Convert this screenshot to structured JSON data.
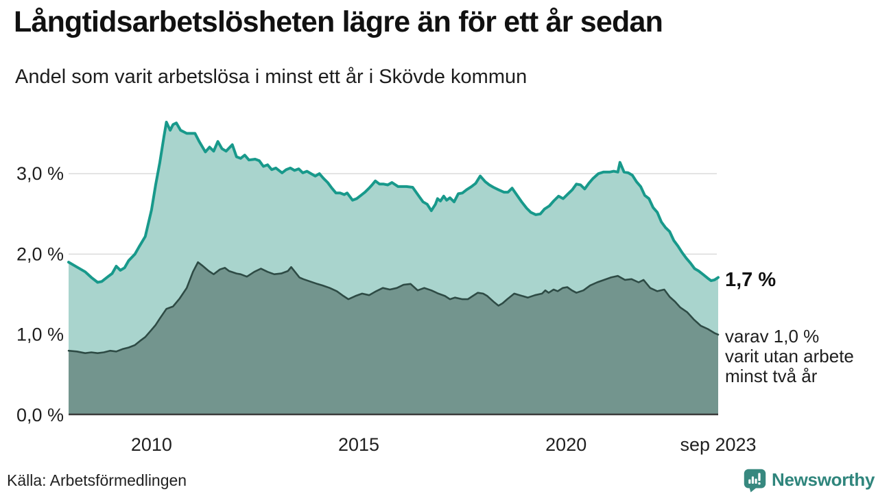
{
  "styles": {
    "accent_teal": "#18998B",
    "light_fill": "#A9D4CD",
    "dark_fill": "#73958E",
    "dark_line": "#2E4B45",
    "grid_color": "#DBDBDB",
    "axis_color": "#3A3A3A",
    "brand_color": "#2F857C"
  },
  "chart_data": {
    "type": "area",
    "title": "Långtidsarbetslösheten lägre än för ett år sedan",
    "subtitle": "Andel som varit arbetslösa i minst ett år i Skövde kommun",
    "source": "Källa: Arbetsförmedlingen",
    "brand": "Newsworthy",
    "x_domain": [
      2008,
      2023.67
    ],
    "y_domain": [
      0,
      3.8
    ],
    "grid": "horizontal",
    "legend_position": "none",
    "x_ticks": [
      {
        "year": 2010,
        "label": "2010"
      },
      {
        "year": 2015,
        "label": "2015"
      },
      {
        "year": 2020,
        "label": "2020"
      },
      {
        "year": 2023.67,
        "label": "sep 2023"
      }
    ],
    "y_ticks": [
      {
        "value": 0,
        "label": "0,0 %"
      },
      {
        "value": 1,
        "label": "1,0 %"
      },
      {
        "value": 2,
        "label": "2,0 %"
      },
      {
        "value": 3,
        "label": "3,0 %"
      }
    ],
    "annotations": {
      "end_value_label": "1,7 %",
      "end_secondary_label": "varav 1,0 %\nvarit utan arbete\nminst två år"
    },
    "series": [
      {
        "name": "Andel arbetslösa minst ett år",
        "line_color": "#18998B",
        "fill_color": "#A9D4CD",
        "line_width": 4,
        "end_value": 1.7,
        "points": [
          [
            2008.0,
            1.9
          ],
          [
            2008.2,
            1.84
          ],
          [
            2008.4,
            1.78
          ],
          [
            2008.55,
            1.71
          ],
          [
            2008.7,
            1.65
          ],
          [
            2008.8,
            1.66
          ],
          [
            2008.95,
            1.72
          ],
          [
            2009.05,
            1.76
          ],
          [
            2009.15,
            1.85
          ],
          [
            2009.25,
            1.8
          ],
          [
            2009.35,
            1.83
          ],
          [
            2009.45,
            1.92
          ],
          [
            2009.6,
            2.0
          ],
          [
            2009.7,
            2.09
          ],
          [
            2009.85,
            2.22
          ],
          [
            2010.0,
            2.55
          ],
          [
            2010.1,
            2.86
          ],
          [
            2010.2,
            3.14
          ],
          [
            2010.3,
            3.46
          ],
          [
            2010.36,
            3.64
          ],
          [
            2010.45,
            3.54
          ],
          [
            2010.52,
            3.61
          ],
          [
            2010.6,
            3.63
          ],
          [
            2010.7,
            3.54
          ],
          [
            2010.85,
            3.5
          ],
          [
            2011.05,
            3.5
          ],
          [
            2011.15,
            3.4
          ],
          [
            2011.3,
            3.27
          ],
          [
            2011.4,
            3.33
          ],
          [
            2011.5,
            3.28
          ],
          [
            2011.6,
            3.4
          ],
          [
            2011.7,
            3.31
          ],
          [
            2011.8,
            3.28
          ],
          [
            2011.95,
            3.36
          ],
          [
            2012.05,
            3.21
          ],
          [
            2012.15,
            3.19
          ],
          [
            2012.25,
            3.23
          ],
          [
            2012.35,
            3.17
          ],
          [
            2012.5,
            3.18
          ],
          [
            2012.6,
            3.16
          ],
          [
            2012.7,
            3.09
          ],
          [
            2012.8,
            3.11
          ],
          [
            2012.9,
            3.05
          ],
          [
            2013.0,
            3.07
          ],
          [
            2013.15,
            3.01
          ],
          [
            2013.25,
            3.05
          ],
          [
            2013.35,
            3.07
          ],
          [
            2013.45,
            3.04
          ],
          [
            2013.55,
            3.06
          ],
          [
            2013.65,
            3.01
          ],
          [
            2013.75,
            3.03
          ],
          [
            2013.85,
            3.0
          ],
          [
            2013.95,
            2.97
          ],
          [
            2014.05,
            3.0
          ],
          [
            2014.15,
            2.94
          ],
          [
            2014.25,
            2.89
          ],
          [
            2014.35,
            2.82
          ],
          [
            2014.45,
            2.76
          ],
          [
            2014.55,
            2.76
          ],
          [
            2014.65,
            2.74
          ],
          [
            2014.72,
            2.76
          ],
          [
            2014.85,
            2.67
          ],
          [
            2014.95,
            2.69
          ],
          [
            2015.05,
            2.73
          ],
          [
            2015.15,
            2.77
          ],
          [
            2015.25,
            2.82
          ],
          [
            2015.32,
            2.86
          ],
          [
            2015.4,
            2.91
          ],
          [
            2015.5,
            2.87
          ],
          [
            2015.6,
            2.87
          ],
          [
            2015.7,
            2.86
          ],
          [
            2015.8,
            2.89
          ],
          [
            2015.95,
            2.84
          ],
          [
            2016.15,
            2.84
          ],
          [
            2016.3,
            2.83
          ],
          [
            2016.45,
            2.72
          ],
          [
            2016.55,
            2.65
          ],
          [
            2016.65,
            2.62
          ],
          [
            2016.75,
            2.54
          ],
          [
            2016.85,
            2.62
          ],
          [
            2016.9,
            2.69
          ],
          [
            2016.97,
            2.66
          ],
          [
            2017.05,
            2.72
          ],
          [
            2017.12,
            2.67
          ],
          [
            2017.2,
            2.7
          ],
          [
            2017.3,
            2.65
          ],
          [
            2017.4,
            2.75
          ],
          [
            2017.5,
            2.76
          ],
          [
            2017.6,
            2.8
          ],
          [
            2017.72,
            2.84
          ],
          [
            2017.82,
            2.88
          ],
          [
            2017.93,
            2.97
          ],
          [
            2018.05,
            2.9
          ],
          [
            2018.15,
            2.86
          ],
          [
            2018.25,
            2.83
          ],
          [
            2018.37,
            2.8
          ],
          [
            2018.5,
            2.77
          ],
          [
            2018.6,
            2.77
          ],
          [
            2018.7,
            2.82
          ],
          [
            2018.82,
            2.73
          ],
          [
            2018.93,
            2.65
          ],
          [
            2019.05,
            2.57
          ],
          [
            2019.15,
            2.52
          ],
          [
            2019.27,
            2.49
          ],
          [
            2019.38,
            2.5
          ],
          [
            2019.48,
            2.56
          ],
          [
            2019.6,
            2.6
          ],
          [
            2019.7,
            2.66
          ],
          [
            2019.82,
            2.72
          ],
          [
            2019.93,
            2.69
          ],
          [
            2020.05,
            2.75
          ],
          [
            2020.15,
            2.8
          ],
          [
            2020.25,
            2.87
          ],
          [
            2020.35,
            2.86
          ],
          [
            2020.45,
            2.81
          ],
          [
            2020.55,
            2.88
          ],
          [
            2020.65,
            2.94
          ],
          [
            2020.78,
            3.0
          ],
          [
            2020.9,
            3.02
          ],
          [
            2021.05,
            3.02
          ],
          [
            2021.15,
            3.03
          ],
          [
            2021.25,
            3.02
          ],
          [
            2021.3,
            3.14
          ],
          [
            2021.4,
            3.02
          ],
          [
            2021.5,
            3.01
          ],
          [
            2021.6,
            2.98
          ],
          [
            2021.7,
            2.9
          ],
          [
            2021.8,
            2.84
          ],
          [
            2021.9,
            2.73
          ],
          [
            2022.0,
            2.69
          ],
          [
            2022.1,
            2.58
          ],
          [
            2022.2,
            2.52
          ],
          [
            2022.3,
            2.4
          ],
          [
            2022.4,
            2.33
          ],
          [
            2022.5,
            2.28
          ],
          [
            2022.6,
            2.17
          ],
          [
            2022.7,
            2.1
          ],
          [
            2022.8,
            2.02
          ],
          [
            2022.9,
            1.95
          ],
          [
            2023.0,
            1.89
          ],
          [
            2023.1,
            1.82
          ],
          [
            2023.2,
            1.79
          ],
          [
            2023.3,
            1.75
          ],
          [
            2023.42,
            1.7
          ],
          [
            2023.5,
            1.67
          ],
          [
            2023.58,
            1.68
          ],
          [
            2023.67,
            1.71
          ]
        ]
      },
      {
        "name": "Varav utan arbete minst två år",
        "line_color": "#2E4B45",
        "fill_color": "#73958E",
        "line_width": 2.6,
        "end_value": 1.0,
        "points": [
          [
            2008.0,
            0.8
          ],
          [
            2008.2,
            0.79
          ],
          [
            2008.4,
            0.77
          ],
          [
            2008.55,
            0.78
          ],
          [
            2008.7,
            0.77
          ],
          [
            2008.85,
            0.78
          ],
          [
            2009.0,
            0.8
          ],
          [
            2009.15,
            0.79
          ],
          [
            2009.3,
            0.82
          ],
          [
            2009.45,
            0.84
          ],
          [
            2009.6,
            0.87
          ],
          [
            2009.72,
            0.92
          ],
          [
            2009.85,
            0.97
          ],
          [
            2010.0,
            1.06
          ],
          [
            2010.1,
            1.12
          ],
          [
            2010.2,
            1.2
          ],
          [
            2010.36,
            1.32
          ],
          [
            2010.52,
            1.35
          ],
          [
            2010.68,
            1.45
          ],
          [
            2010.85,
            1.58
          ],
          [
            2011.0,
            1.78
          ],
          [
            2011.12,
            1.9
          ],
          [
            2011.22,
            1.86
          ],
          [
            2011.38,
            1.79
          ],
          [
            2011.5,
            1.75
          ],
          [
            2011.65,
            1.81
          ],
          [
            2011.77,
            1.83
          ],
          [
            2011.87,
            1.79
          ],
          [
            2012.05,
            1.76
          ],
          [
            2012.15,
            1.75
          ],
          [
            2012.3,
            1.72
          ],
          [
            2012.48,
            1.78
          ],
          [
            2012.64,
            1.82
          ],
          [
            2012.8,
            1.78
          ],
          [
            2012.96,
            1.75
          ],
          [
            2013.13,
            1.76
          ],
          [
            2013.29,
            1.79
          ],
          [
            2013.37,
            1.84
          ],
          [
            2013.57,
            1.71
          ],
          [
            2013.66,
            1.69
          ],
          [
            2013.83,
            1.66
          ],
          [
            2014.0,
            1.63
          ],
          [
            2014.13,
            1.61
          ],
          [
            2014.3,
            1.58
          ],
          [
            2014.47,
            1.54
          ],
          [
            2014.63,
            1.48
          ],
          [
            2014.75,
            1.44
          ],
          [
            2014.92,
            1.48
          ],
          [
            2015.08,
            1.51
          ],
          [
            2015.25,
            1.49
          ],
          [
            2015.42,
            1.54
          ],
          [
            2015.58,
            1.58
          ],
          [
            2015.75,
            1.56
          ],
          [
            2015.92,
            1.58
          ],
          [
            2016.08,
            1.62
          ],
          [
            2016.25,
            1.63
          ],
          [
            2016.42,
            1.55
          ],
          [
            2016.58,
            1.58
          ],
          [
            2016.75,
            1.55
          ],
          [
            2016.92,
            1.51
          ],
          [
            2017.08,
            1.48
          ],
          [
            2017.2,
            1.44
          ],
          [
            2017.32,
            1.46
          ],
          [
            2017.5,
            1.44
          ],
          [
            2017.63,
            1.44
          ],
          [
            2017.75,
            1.48
          ],
          [
            2017.87,
            1.52
          ],
          [
            2018.0,
            1.51
          ],
          [
            2018.1,
            1.48
          ],
          [
            2018.25,
            1.41
          ],
          [
            2018.37,
            1.36
          ],
          [
            2018.47,
            1.39
          ],
          [
            2018.58,
            1.44
          ],
          [
            2018.75,
            1.51
          ],
          [
            2018.88,
            1.49
          ],
          [
            2019.08,
            1.46
          ],
          [
            2019.25,
            1.49
          ],
          [
            2019.42,
            1.51
          ],
          [
            2019.5,
            1.55
          ],
          [
            2019.58,
            1.52
          ],
          [
            2019.7,
            1.56
          ],
          [
            2019.8,
            1.54
          ],
          [
            2019.92,
            1.58
          ],
          [
            2020.03,
            1.59
          ],
          [
            2020.14,
            1.55
          ],
          [
            2020.25,
            1.52
          ],
          [
            2020.42,
            1.55
          ],
          [
            2020.58,
            1.61
          ],
          [
            2020.75,
            1.65
          ],
          [
            2020.92,
            1.68
          ],
          [
            2021.08,
            1.71
          ],
          [
            2021.25,
            1.73
          ],
          [
            2021.42,
            1.68
          ],
          [
            2021.58,
            1.69
          ],
          [
            2021.75,
            1.65
          ],
          [
            2021.87,
            1.68
          ],
          [
            2022.03,
            1.58
          ],
          [
            2022.2,
            1.54
          ],
          [
            2022.37,
            1.56
          ],
          [
            2022.5,
            1.47
          ],
          [
            2022.63,
            1.41
          ],
          [
            2022.75,
            1.34
          ],
          [
            2022.92,
            1.28
          ],
          [
            2023.08,
            1.19
          ],
          [
            2023.25,
            1.11
          ],
          [
            2023.42,
            1.07
          ],
          [
            2023.58,
            1.02
          ],
          [
            2023.67,
            1.0
          ]
        ]
      }
    ]
  }
}
